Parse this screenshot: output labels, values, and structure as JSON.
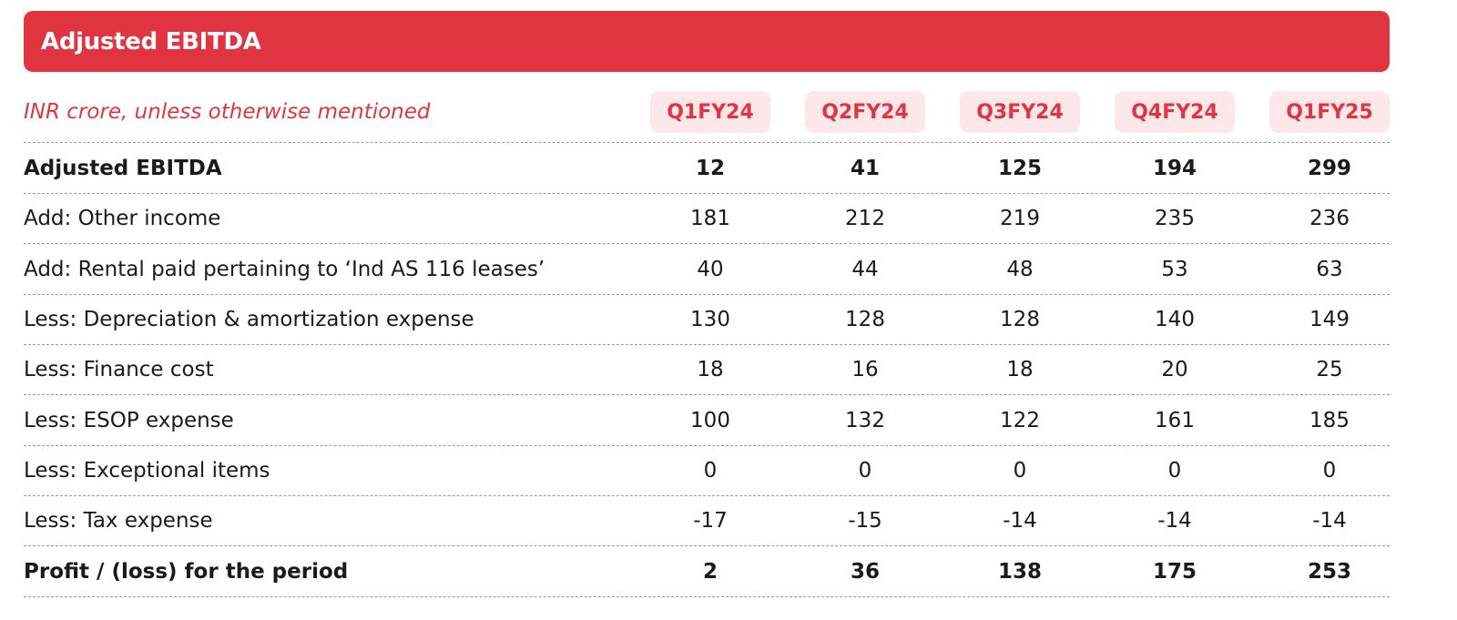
{
  "title": "Adjusted EBITDA",
  "subtitle": "INR crore, unless otherwise mentioned",
  "columns": [
    "Q1FY24",
    "Q2FY24",
    "Q3FY24",
    "Q4FY24",
    "Q1FY25"
  ],
  "accent_color": "#e03541",
  "pill_color": "#fde7e8",
  "rows": [
    {
      "label": "Adjusted EBITDA",
      "values": [
        "12",
        "41",
        "125",
        "194",
        "299"
      ]
    },
    {
      "label": "Add: Other income",
      "values": [
        "181",
        "212",
        "219",
        "235",
        "236"
      ]
    },
    {
      "label": "Add: Rental paid pertaining to ‘Ind AS 116 leases’",
      "values": [
        "40",
        "44",
        "48",
        "53",
        "63"
      ]
    },
    {
      "label": "Less: Depreciation & amortization expense",
      "values": [
        "130",
        "128",
        "128",
        "140",
        "149"
      ]
    },
    {
      "label": "Less: Finance cost",
      "values": [
        "18",
        "16",
        "18",
        "20",
        "25"
      ]
    },
    {
      "label": "Less: ESOP expense",
      "values": [
        "100",
        "132",
        "122",
        "161",
        "185"
      ]
    },
    {
      "label": "Less: Exceptional items",
      "values": [
        "0",
        "0",
        "0",
        "0",
        "0"
      ]
    },
    {
      "label": "Less: Tax expense",
      "values": [
        "-17",
        "-15",
        "-14",
        "-14",
        "-14"
      ]
    },
    {
      "label": "Profit / (loss) for the period",
      "values": [
        "2",
        "36",
        "138",
        "175",
        "253"
      ]
    }
  ]
}
